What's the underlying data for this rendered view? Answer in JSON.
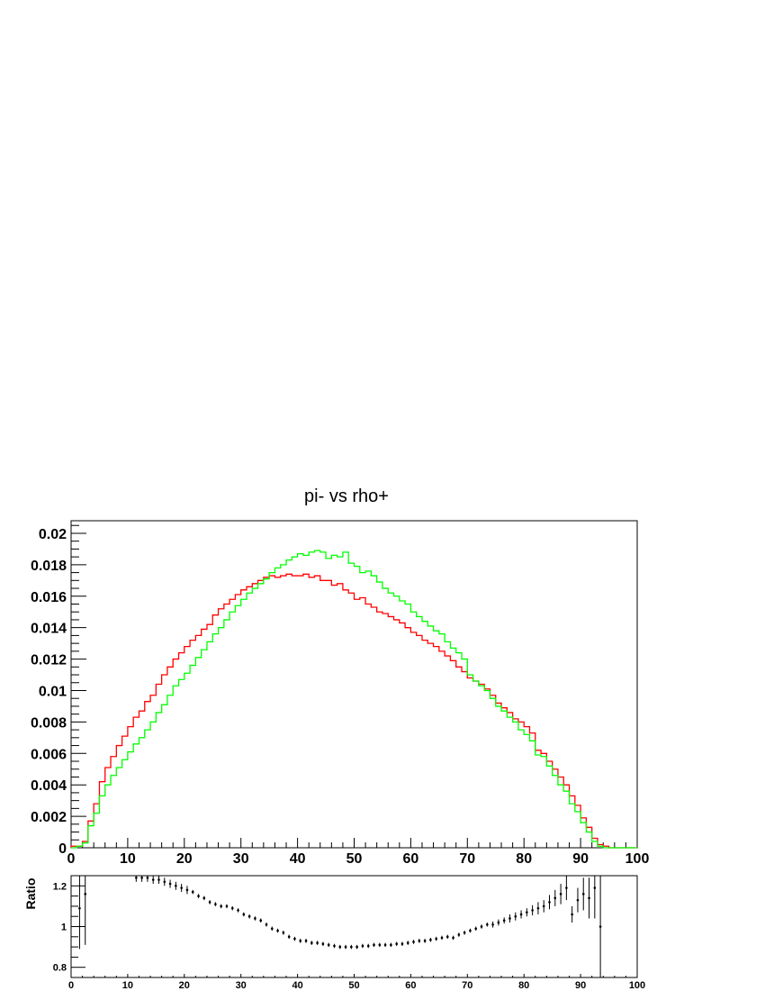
{
  "chart_data": [
    {
      "type": "line",
      "title": "pi- vs rho+",
      "xlabel": "",
      "ylabel": "",
      "xlim": [
        0,
        100
      ],
      "ylim": [
        0,
        0.0208
      ],
      "x_ticks": [
        "0",
        "10",
        "20",
        "30",
        "40",
        "50",
        "60",
        "70",
        "80",
        "90",
        "100"
      ],
      "y_ticks": [
        "0",
        "0.002",
        "0.004",
        "0.006",
        "0.008",
        "0.01",
        "0.012",
        "0.014",
        "0.016",
        "0.018",
        "0.02"
      ],
      "bin_edges": [
        0,
        100
      ],
      "bins": 100,
      "legend": "none",
      "series": [
        {
          "color": "#ff0000",
          "values": [
            0.0001,
            0.0001,
            0.0004,
            0.0017,
            0.0028,
            0.0042,
            0.0051,
            0.0058,
            0.0065,
            0.0071,
            0.0077,
            0.0083,
            0.0087,
            0.0093,
            0.0097,
            0.0104,
            0.011,
            0.0115,
            0.012,
            0.0124,
            0.0128,
            0.0132,
            0.0135,
            0.0139,
            0.0142,
            0.0148,
            0.0152,
            0.0155,
            0.0158,
            0.0161,
            0.0164,
            0.0166,
            0.0168,
            0.017,
            0.0172,
            0.0173,
            0.0172,
            0.0173,
            0.0174,
            0.0173,
            0.0173,
            0.0174,
            0.0172,
            0.0173,
            0.017,
            0.017,
            0.0167,
            0.0168,
            0.0164,
            0.0162,
            0.0158,
            0.0159,
            0.0155,
            0.0153,
            0.015,
            0.0149,
            0.0147,
            0.0145,
            0.0143,
            0.014,
            0.0137,
            0.0135,
            0.0132,
            0.013,
            0.0128,
            0.0125,
            0.0122,
            0.0119,
            0.0115,
            0.0112,
            0.0108,
            0.0106,
            0.0104,
            0.0101,
            0.0097,
            0.0092,
            0.0089,
            0.0086,
            0.0082,
            0.008,
            0.0077,
            0.0073,
            0.0062,
            0.006,
            0.0055,
            0.005,
            0.0045,
            0.004,
            0.0033,
            0.0027,
            0.0019,
            0.0013,
            0.0006,
            0.0002,
            0.0001,
            0.0,
            0.0,
            0.0,
            0.0,
            0.0
          ]
        },
        {
          "color": "#00ff00",
          "values": [
            0.0,
            0.0001,
            0.0003,
            0.0014,
            0.0022,
            0.0033,
            0.004,
            0.0046,
            0.0051,
            0.0056,
            0.0061,
            0.0066,
            0.007,
            0.0075,
            0.008,
            0.0086,
            0.0091,
            0.0097,
            0.0103,
            0.0107,
            0.0111,
            0.0116,
            0.0121,
            0.0126,
            0.0131,
            0.0136,
            0.014,
            0.0145,
            0.015,
            0.0154,
            0.0158,
            0.0162,
            0.0165,
            0.0168,
            0.0171,
            0.0175,
            0.0178,
            0.018,
            0.0183,
            0.0185,
            0.0187,
            0.0186,
            0.0188,
            0.0189,
            0.0188,
            0.0184,
            0.0186,
            0.0185,
            0.0188,
            0.0181,
            0.0179,
            0.0175,
            0.0176,
            0.0173,
            0.0169,
            0.0165,
            0.0162,
            0.016,
            0.0157,
            0.0155,
            0.015,
            0.0147,
            0.0144,
            0.0141,
            0.0138,
            0.0136,
            0.0131,
            0.0127,
            0.0124,
            0.012,
            0.011,
            0.0106,
            0.0103,
            0.01,
            0.0095,
            0.009,
            0.0087,
            0.0083,
            0.008,
            0.0075,
            0.0072,
            0.0068,
            0.0059,
            0.0058,
            0.0052,
            0.0046,
            0.004,
            0.0036,
            0.0028,
            0.0023,
            0.0016,
            0.001,
            0.0004,
            0.0001,
            0.0,
            0.0,
            0.0,
            0.0,
            0.0,
            0.0
          ]
        }
      ]
    },
    {
      "type": "scatter",
      "title": "",
      "xlabel": "",
      "ylabel": "Ratio",
      "xlim": [
        0,
        100
      ],
      "ylim": [
        0.75,
        1.25
      ],
      "x_ticks": [
        "0",
        "10",
        "20",
        "30",
        "40",
        "50",
        "60",
        "70",
        "80",
        "90",
        "100"
      ],
      "y_ticks": [
        "0.8",
        "1",
        "1.2"
      ],
      "series": [
        {
          "color": "#000000",
          "x": [
            1.5,
            2.5,
            11.5,
            12.5,
            13.5,
            14.5,
            15.5,
            16.5,
            17.5,
            18.5,
            19.5,
            20.5,
            21.5,
            22.5,
            23.5,
            24.5,
            25.5,
            26.5,
            27.5,
            28.5,
            29.5,
            30.5,
            31.5,
            32.5,
            33.5,
            34.5,
            35.5,
            36.5,
            37.5,
            38.5,
            39.5,
            40.5,
            41.5,
            42.5,
            43.5,
            44.5,
            45.5,
            46.5,
            47.5,
            48.5,
            49.5,
            50.5,
            51.5,
            52.5,
            53.5,
            54.5,
            55.5,
            56.5,
            57.5,
            58.5,
            59.5,
            60.5,
            61.5,
            62.5,
            63.5,
            64.5,
            65.5,
            66.5,
            67.5,
            68.5,
            69.5,
            70.5,
            71.5,
            72.5,
            73.5,
            74.5,
            75.5,
            76.5,
            77.5,
            78.5,
            79.5,
            80.5,
            81.5,
            82.5,
            83.5,
            84.5,
            85.5,
            86.5,
            87.5,
            88.5,
            89.5,
            90.5,
            91.5,
            92.5,
            93.5
          ],
          "y": [
            1.09,
            1.16,
            1.24,
            1.24,
            1.24,
            1.23,
            1.23,
            1.22,
            1.21,
            1.2,
            1.19,
            1.18,
            1.17,
            1.15,
            1.14,
            1.12,
            1.11,
            1.1,
            1.1,
            1.09,
            1.08,
            1.06,
            1.05,
            1.04,
            1.03,
            1.01,
            0.99,
            0.98,
            0.97,
            0.95,
            0.94,
            0.93,
            0.93,
            0.92,
            0.92,
            0.915,
            0.91,
            0.905,
            0.9,
            0.9,
            0.9,
            0.9,
            0.905,
            0.905,
            0.91,
            0.91,
            0.91,
            0.91,
            0.915,
            0.915,
            0.92,
            0.925,
            0.93,
            0.93,
            0.935,
            0.94,
            0.945,
            0.95,
            0.945,
            0.96,
            0.97,
            0.98,
            0.99,
            1.0,
            1.01,
            1.01,
            1.02,
            1.03,
            1.04,
            1.05,
            1.06,
            1.07,
            1.08,
            1.09,
            1.1,
            1.12,
            1.14,
            1.16,
            1.19,
            1.06,
            1.13,
            1.16,
            1.14,
            1.19,
            1.0
          ],
          "err": [
            0.2,
            0.25,
            0.02,
            0.02,
            0.02,
            0.02,
            0.02,
            0.02,
            0.02,
            0.02,
            0.02,
            0.02,
            0.01,
            0.01,
            0.01,
            0.01,
            0.01,
            0.01,
            0.01,
            0.01,
            0.01,
            0.01,
            0.01,
            0.01,
            0.01,
            0.01,
            0.01,
            0.01,
            0.01,
            0.01,
            0.01,
            0.01,
            0.01,
            0.01,
            0.01,
            0.01,
            0.01,
            0.01,
            0.01,
            0.01,
            0.01,
            0.01,
            0.01,
            0.01,
            0.01,
            0.01,
            0.01,
            0.01,
            0.01,
            0.01,
            0.01,
            0.01,
            0.01,
            0.01,
            0.01,
            0.01,
            0.01,
            0.01,
            0.01,
            0.01,
            0.01,
            0.01,
            0.01,
            0.01,
            0.01,
            0.015,
            0.015,
            0.015,
            0.02,
            0.02,
            0.02,
            0.02,
            0.025,
            0.03,
            0.03,
            0.035,
            0.04,
            0.05,
            0.06,
            0.04,
            0.06,
            0.08,
            0.1,
            0.15,
            0.25
          ]
        }
      ]
    }
  ]
}
